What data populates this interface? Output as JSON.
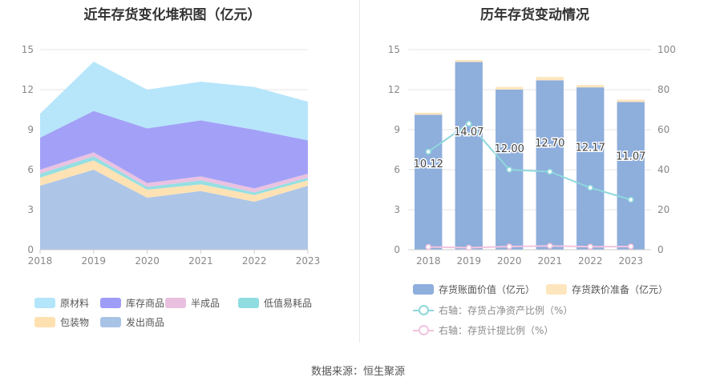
{
  "left_title": "近年存货变化堆积图（亿元）",
  "right_title": "历年存货变动情况",
  "source": "数据来源：恒生聚源",
  "colors": {
    "raw": "#b3e5fb",
    "stock": "#9e9cf7",
    "semi": "#e9bfdf",
    "lowvalue": "#8fdde0",
    "packaging": "#ffe0b0",
    "shipped": "#a9c3e6",
    "bar": "#8eaedc",
    "impair": "#fde6bd",
    "line_ratio": "#8fd8dc",
    "line_provision": "#f2c4e0"
  },
  "chart_data": [
    {
      "type": "area",
      "title": "近年存货变化堆积图（亿元）",
      "x": [
        "2018",
        "2019",
        "2020",
        "2021",
        "2022",
        "2023"
      ],
      "ylim": [
        0,
        15
      ],
      "yticks": [
        "0",
        "3",
        "6",
        "9",
        "12",
        "15"
      ],
      "stacked": true,
      "series": [
        {
          "name": "发出商品",
          "color_key": "shipped",
          "values": [
            4.8,
            6.0,
            3.9,
            4.4,
            3.6,
            4.8
          ]
        },
        {
          "name": "包装物",
          "color_key": "packaging",
          "values": [
            0.6,
            0.7,
            0.6,
            0.5,
            0.5,
            0.4
          ]
        },
        {
          "name": "低值易耗品",
          "color_key": "lowvalue",
          "values": [
            0.3,
            0.3,
            0.2,
            0.3,
            0.2,
            0.2
          ]
        },
        {
          "name": "半成品",
          "color_key": "semi",
          "values": [
            0.3,
            0.3,
            0.3,
            0.3,
            0.3,
            0.3
          ]
        },
        {
          "name": "库存商品",
          "color_key": "stock",
          "values": [
            2.4,
            3.1,
            4.1,
            4.2,
            4.4,
            2.5
          ]
        },
        {
          "name": "原材料",
          "color_key": "raw",
          "values": [
            1.8,
            3.7,
            2.9,
            2.9,
            3.2,
            2.9
          ]
        }
      ],
      "legend": [
        "原材料",
        "库存商品",
        "半成品",
        "低值易耗品",
        "包装物",
        "发出商品"
      ],
      "legend_position": "bottom"
    },
    {
      "type": "bar",
      "title": "历年存货变动情况",
      "categories": [
        "2018",
        "2019",
        "2020",
        "2021",
        "2022",
        "2023"
      ],
      "ylim_left": [
        0,
        15
      ],
      "yticks_left": [
        "0",
        "3",
        "6",
        "9",
        "12",
        "15"
      ],
      "ylim_right": [
        0,
        100
      ],
      "yticks_right": [
        "0",
        "20",
        "40",
        "60",
        "80",
        "100"
      ],
      "series": [
        {
          "name": "存货账面价值（亿元）",
          "kind": "bar",
          "values": [
            10.12,
            14.07,
            12.0,
            12.7,
            12.17,
            11.07
          ],
          "labels": [
            "10.12",
            "14.07",
            "12.00",
            "12.70",
            "12.17",
            "11.07"
          ]
        },
        {
          "name": "存货跌价准备（亿元）",
          "kind": "bar-stack",
          "values": [
            0.15,
            0.15,
            0.2,
            0.25,
            0.18,
            0.18
          ]
        },
        {
          "name": "右轴：存货占净资产比例（%）",
          "kind": "line",
          "axis": "right",
          "values": [
            49,
            63,
            40,
            39,
            31,
            25
          ]
        },
        {
          "name": "右轴：存货计提比例（%）",
          "kind": "line",
          "axis": "right",
          "values": [
            1.4,
            1.0,
            1.6,
            1.9,
            1.5,
            1.6
          ]
        }
      ],
      "legend_position": "bottom"
    }
  ]
}
